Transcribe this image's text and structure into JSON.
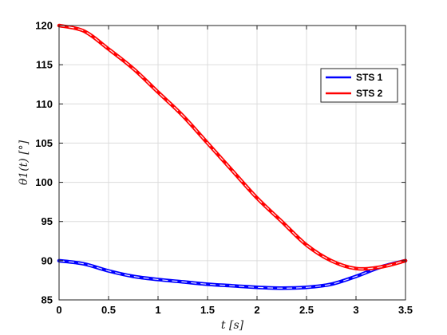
{
  "chart_data": {
    "type": "line",
    "xlabel": "t [s]",
    "ylabel": "θ1(t) [°]",
    "xlim": [
      0,
      3.5
    ],
    "ylim": [
      85,
      120
    ],
    "xticks": [
      0,
      0.5,
      1,
      1.5,
      2,
      2.5,
      3,
      3.5
    ],
    "yticks": [
      85,
      90,
      95,
      100,
      105,
      110,
      115,
      120
    ],
    "xtick_labels": [
      "0",
      "0.5",
      "1",
      "1.5",
      "2",
      "2.5",
      "3",
      "3.5"
    ],
    "ytick_labels": [
      "85",
      "90",
      "95",
      "100",
      "105",
      "110",
      "115",
      "120"
    ],
    "grid": true,
    "legend_position": "top-right",
    "series": [
      {
        "name": "STS 1",
        "color": "#0000ff",
        "x": [
          0.0,
          0.25,
          0.5,
          0.75,
          1.0,
          1.25,
          1.5,
          1.75,
          2.0,
          2.25,
          2.5,
          2.75,
          3.0,
          3.25,
          3.5
        ],
        "y": [
          90.0,
          89.6,
          88.7,
          88.0,
          87.6,
          87.3,
          87.0,
          86.8,
          86.6,
          86.5,
          86.6,
          87.0,
          88.0,
          89.2,
          90.0
        ]
      },
      {
        "name": "STS 2",
        "color": "#ff0000",
        "x": [
          0.0,
          0.25,
          0.5,
          0.75,
          1.0,
          1.25,
          1.5,
          1.75,
          2.0,
          2.25,
          2.5,
          2.75,
          3.0,
          3.25,
          3.5
        ],
        "y": [
          120.0,
          119.3,
          117.0,
          114.5,
          111.5,
          108.5,
          105.0,
          101.5,
          98.0,
          95.0,
          92.0,
          90.0,
          89.0,
          89.2,
          90.0
        ]
      }
    ]
  }
}
